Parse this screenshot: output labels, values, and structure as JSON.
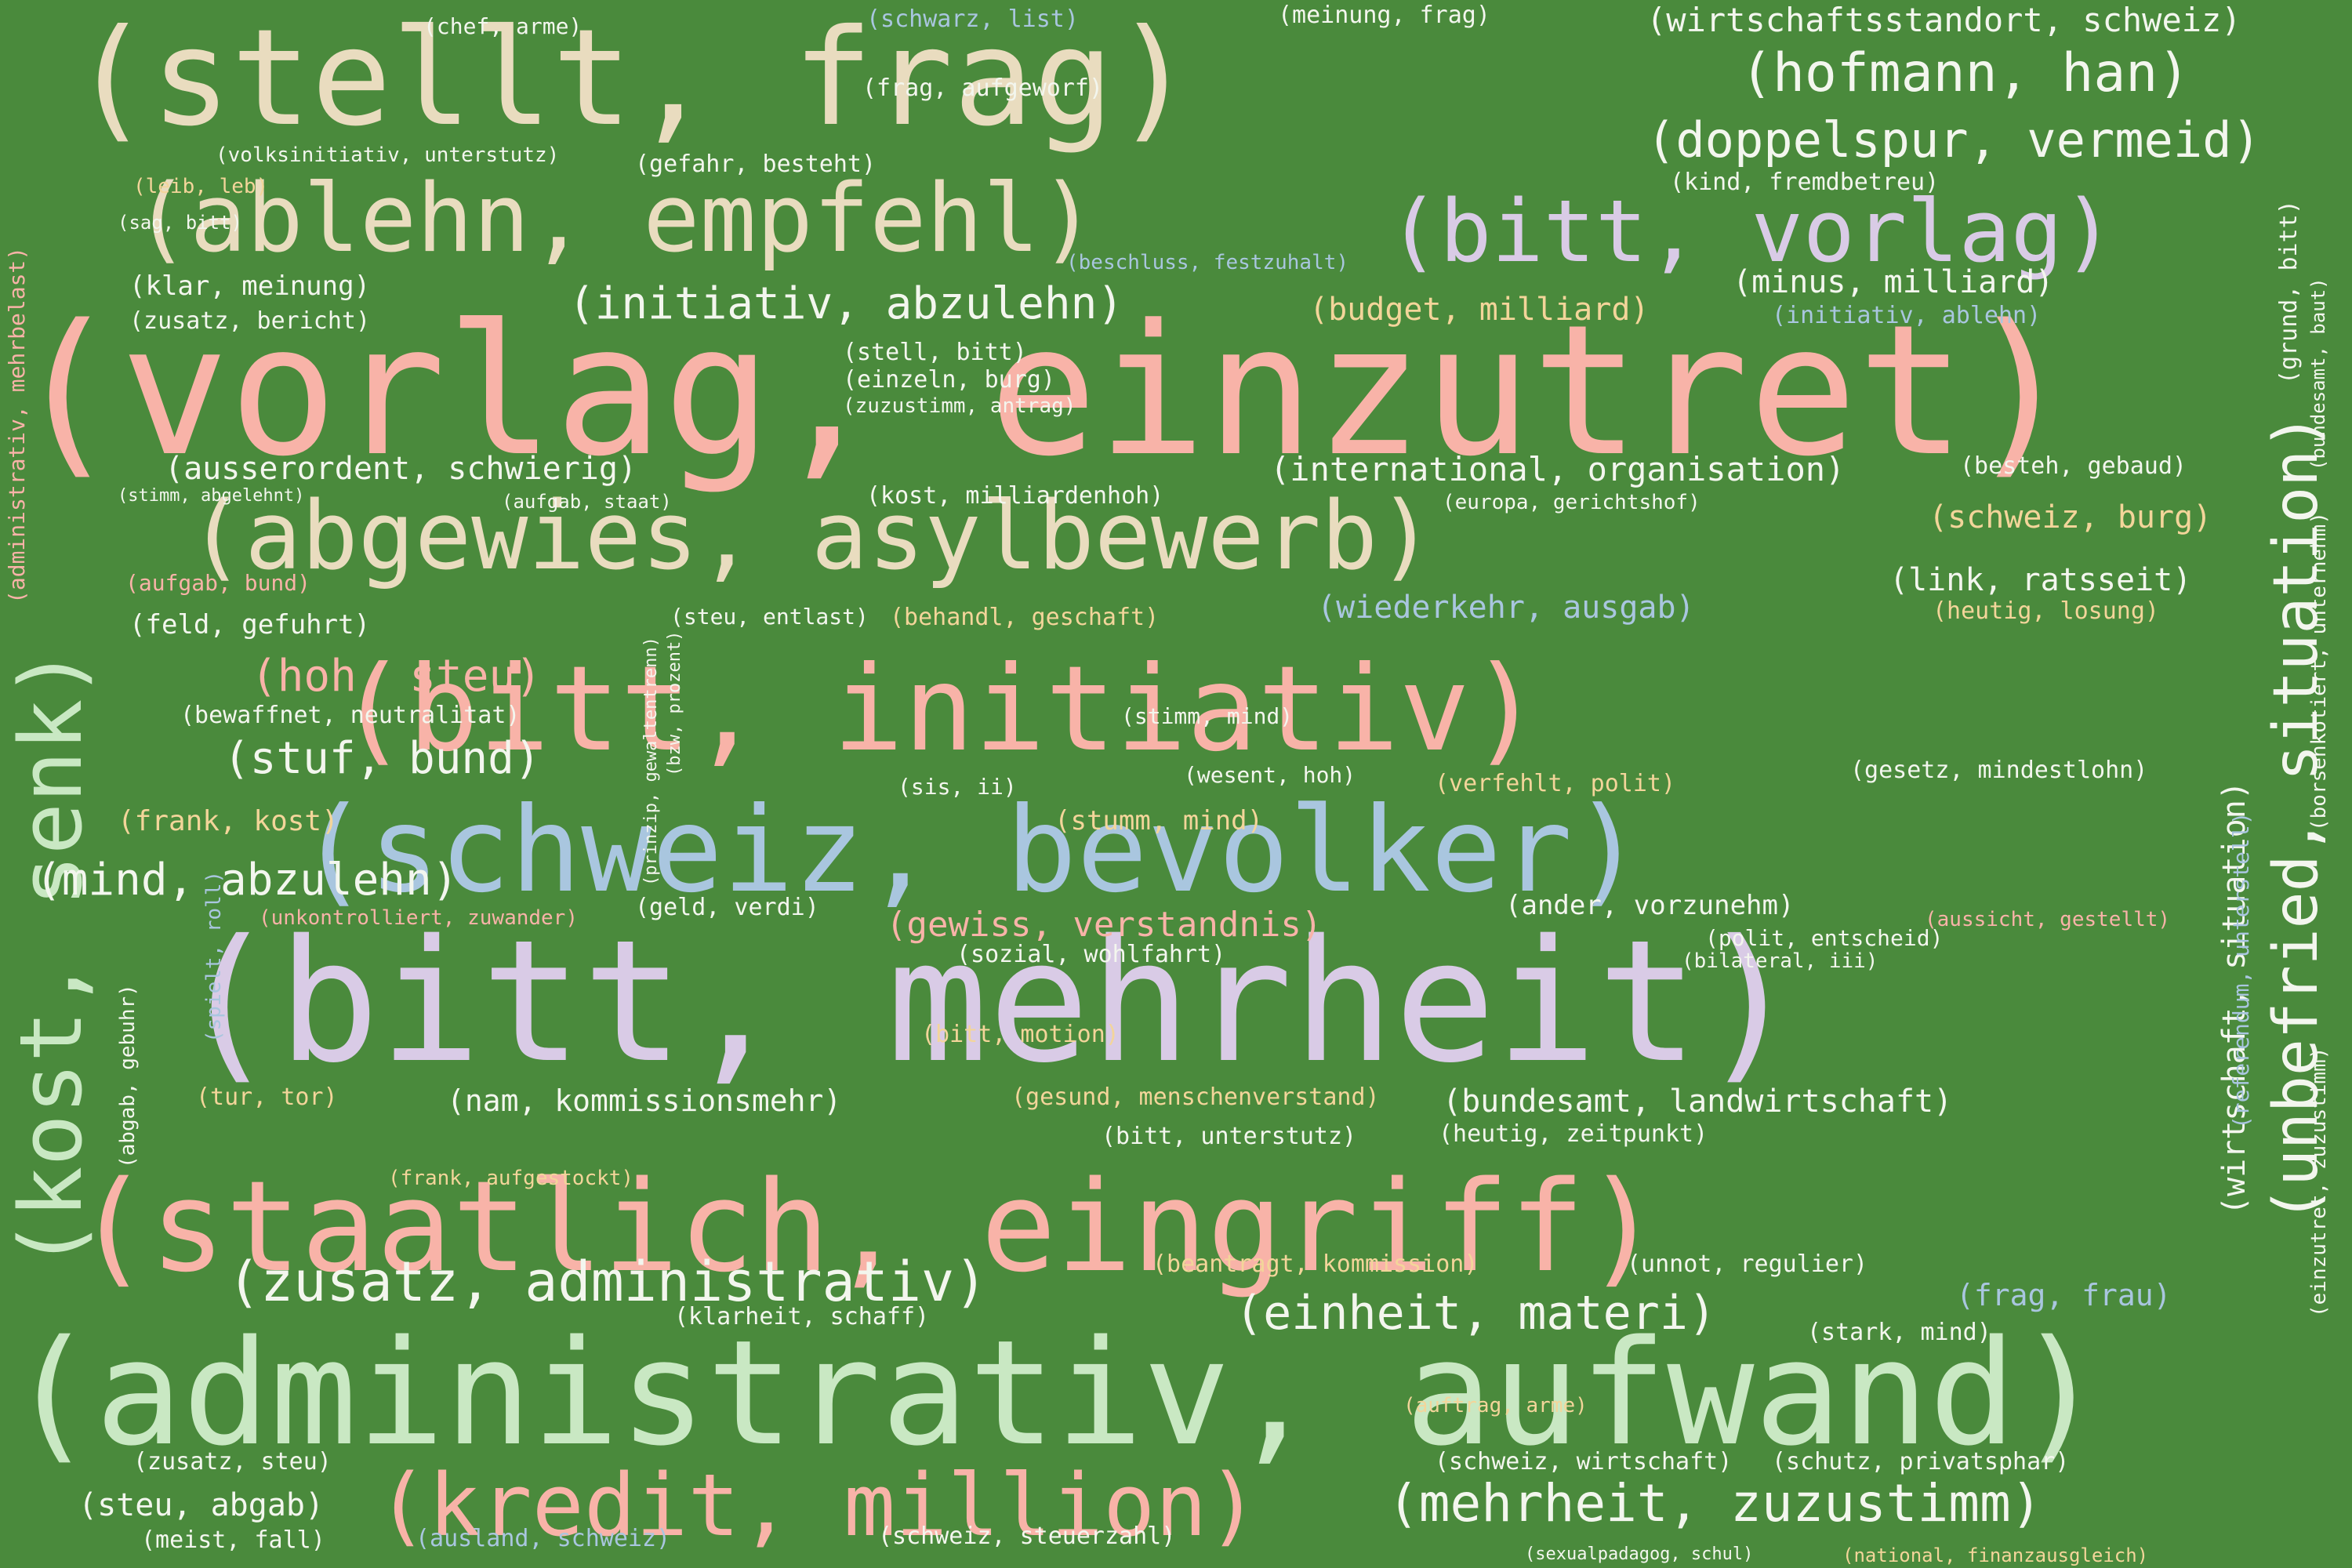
{
  "palette": {
    "background": "#4a8a3c",
    "pink": "#f8b3a8",
    "cream": "#e9dcbf",
    "lavender": "#d9cbe6",
    "blue": "#a9c6df",
    "mint": "#c9e8c3",
    "yellow": "#f3d59a",
    "white": "#f3f6ee"
  },
  "words": [
    "(vorlag, einzutret)",
    "(bitt, mehrheit)",
    "(administrativ, aufwand)",
    "(stellt, frag)",
    "(staatlich, eingriff)",
    "(bitt, initiativ)",
    "(schweiz, bevolker)",
    "(abgewies, asylbewerb)",
    "(ablehn, empfehl)",
    "(bitt, vorlag)",
    "(kost, senk)",
    "(kredit, million)",
    "(unbefried, situation)",
    "(zusatz, administrativ)",
    "(hofmann, han)",
    "(doppelspur, vermeid)",
    "(mehrheit, zuzustimm)",
    "(einheit, materi)",
    "(initiativ, abzulehn)",
    "(mind, abzulehn)",
    "(hoh, steu)",
    "(stuf, bund)",
    "(wirtschaftsstandort, schweiz)",
    "(international, organisation)",
    "(ausserordent, schwierig)",
    "(wirtschaft, situation)",
    "(bundesamt, landwirtschaft)",
    "(nam, kommissionsmehr)",
    "(gewiss, verstandnis)",
    "(wiederkehr, ausgab)",
    "(budget, milliard)",
    "(minus, milliard)",
    "(schweiz, burg)",
    "(link, ratsseit)",
    "(steu, abgab)",
    "(klar, meinung)",
    "(feld, gefuhrt)",
    "(frank, kost)",
    "(stumm, mind)",
    "(ander, vorzunehm)",
    "(gesetz, mindestlohn)",
    "(verfehlt, polit)",
    "(gesund, menschenverstand)",
    "(heutig, zeitpunkt)",
    "(bitt, unterstutz)",
    "(frag, frau)",
    "(schutz, privatsphar)",
    "(schweiz, wirtschaft)",
    "(schweiz, steuerzahl)",
    "(ausland, schweiz)",
    "(zusatz, steu)",
    "(meist, fall)",
    "(tur, tor)",
    "(sozial, wohlfahrt)",
    "(bitt, motion)",
    "(beantragt, kommission)",
    "(unnot, regulier)",
    "(klarheit, schaff)",
    "(stark, mind)",
    "(bewaffnet, neutralitat)",
    "(unkontrolliert, zuwander)",
    "(geld, verdi)",
    "(sexualpadagog, schul)",
    "(national, finanzausgleich)",
    "(auftrag, arme)",
    "(frank, aufgestockt)",
    "(heutig, losung)",
    "(besteh, gebaud)",
    "(initiativ, ablehn)",
    "(beschluss, festzuhalt)",
    "(kind, fremdbetreu)",
    "(gefahr, besteht)",
    "(frag, aufgeworf)",
    "(schwarz, list)",
    "(meinung, frag)",
    "(chef, arme)",
    "(volksinitiativ, unterstutz)",
    "(leib, leb)",
    "(sag, bitt)",
    "(zusatz, bericht)",
    "(stell, bitt)",
    "(einzeln, burg)",
    "(zuzustimm, antrag)",
    "(kost, milliardenhoh)",
    "(europa, gerichtshof)",
    "(aufgab, staat)",
    "(stimm, abgelehnt)",
    "(aufgab, bund)",
    "(behandl, geschaft)",
    "(steu, entlast)",
    "(wesent, hoh)",
    "(stimm, mind)",
    "(sis, ii)",
    "(polit, entscheid)",
    "(bilateral, iii)",
    "(aussicht, gestellt)",
    "(administrativ, mehrbelast)",
    "(referendum, unterstell)",
    "(grund, bitt)",
    "(bundesamt, baut)",
    "(einzutret, zuzustimm)",
    "(borsenkotiert, unternehm)",
    "(abgab, gebuhr)",
    "(prinzip, gewaltentrenn)",
    "(bzw, prozent)",
    "(spielt, roll)"
  ]
}
